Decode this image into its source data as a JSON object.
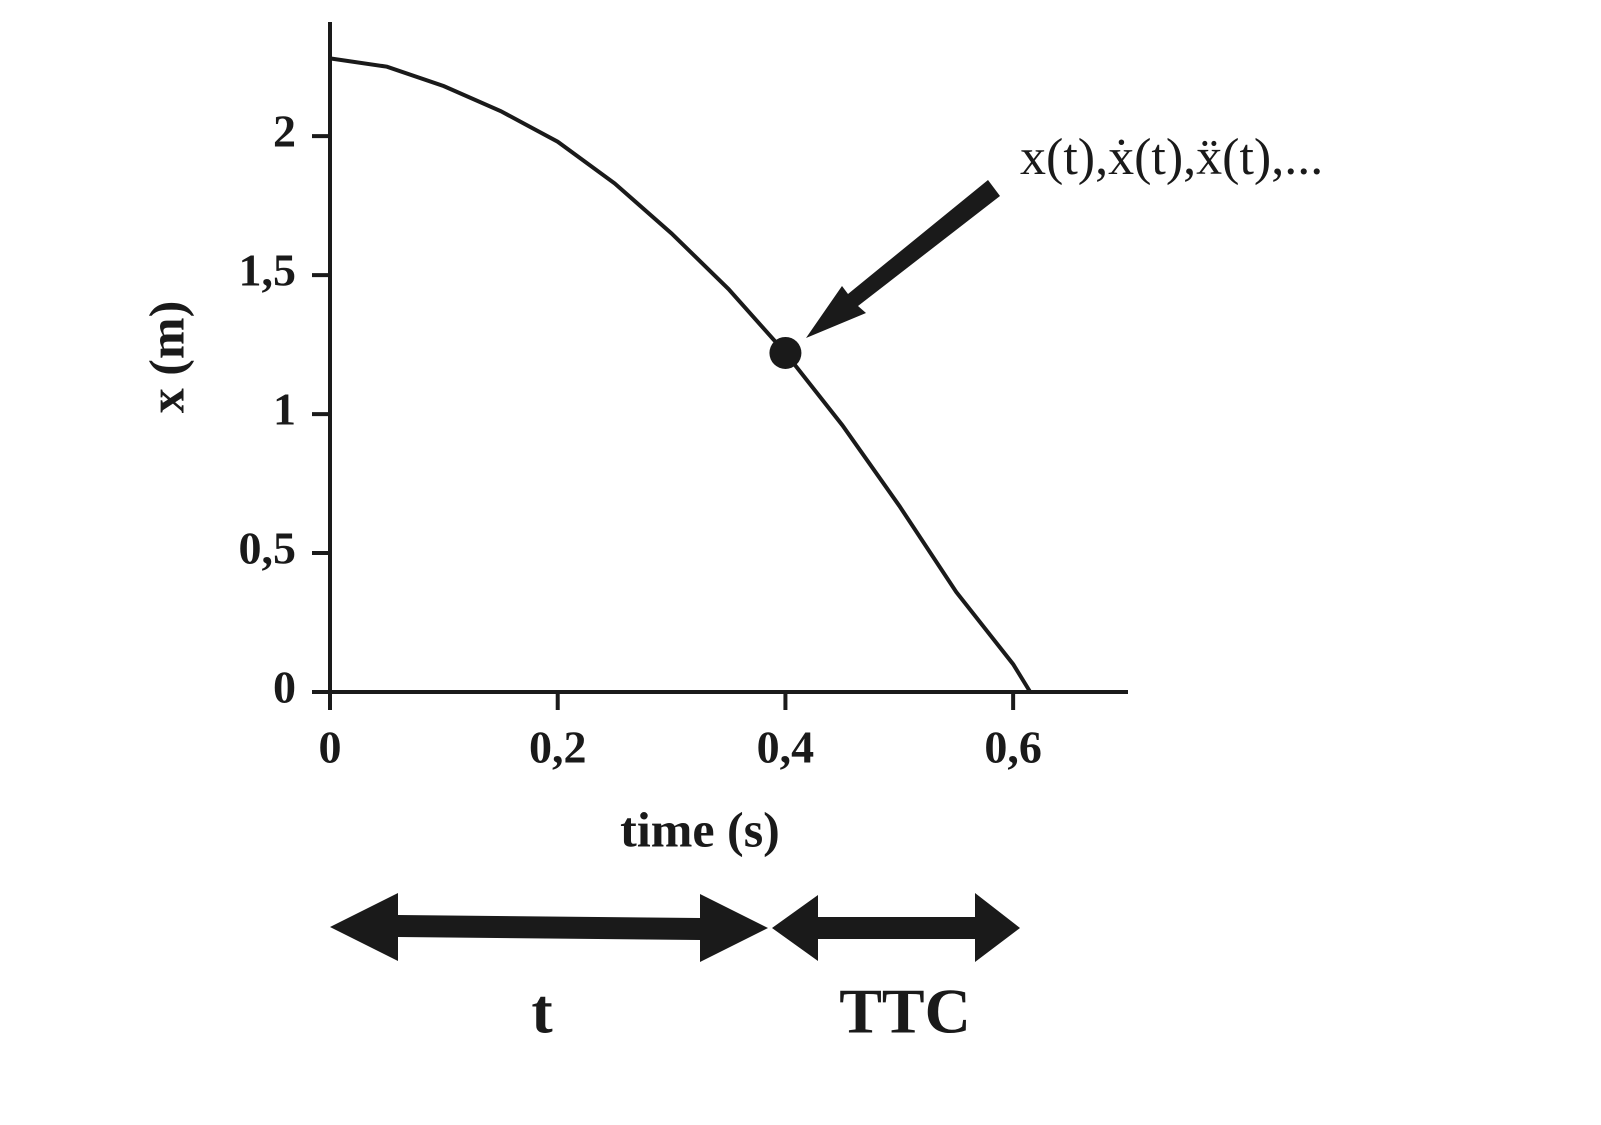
{
  "chart_data": {
    "type": "line",
    "x_label": "time (s)",
    "y_label": "x (m)",
    "x": [
      0,
      0.05,
      0.1,
      0.15,
      0.2,
      0.25,
      0.3,
      0.35,
      0.4,
      0.45,
      0.5,
      0.55,
      0.6,
      0.615
    ],
    "series": [
      {
        "color": "#1a1a1a",
        "values": [
          2.28,
          2.25,
          2.18,
          2.09,
          1.98,
          1.83,
          1.65,
          1.45,
          1.22,
          0.96,
          0.67,
          0.36,
          0.1,
          0
        ]
      }
    ],
    "marker": {
      "x": 0.4,
      "y": 1.22
    },
    "xlim": [
      0,
      0.7
    ],
    "ylim": [
      0,
      2.4
    ],
    "xticks": [
      0,
      {
        "value": 0.2,
        "label": "0,2"
      },
      {
        "value": 0.4,
        "label": "0,4"
      },
      {
        "value": 0.6,
        "label": "0,6"
      }
    ],
    "yticks": [
      0,
      {
        "value": 0.5,
        "label": "0,5"
      },
      1,
      {
        "value": 1.5,
        "label": "1,5"
      },
      2
    ],
    "annotation": "x(t),ẋ(t),ẍ(t),...",
    "intervals": [
      "t",
      "TTC"
    ]
  }
}
